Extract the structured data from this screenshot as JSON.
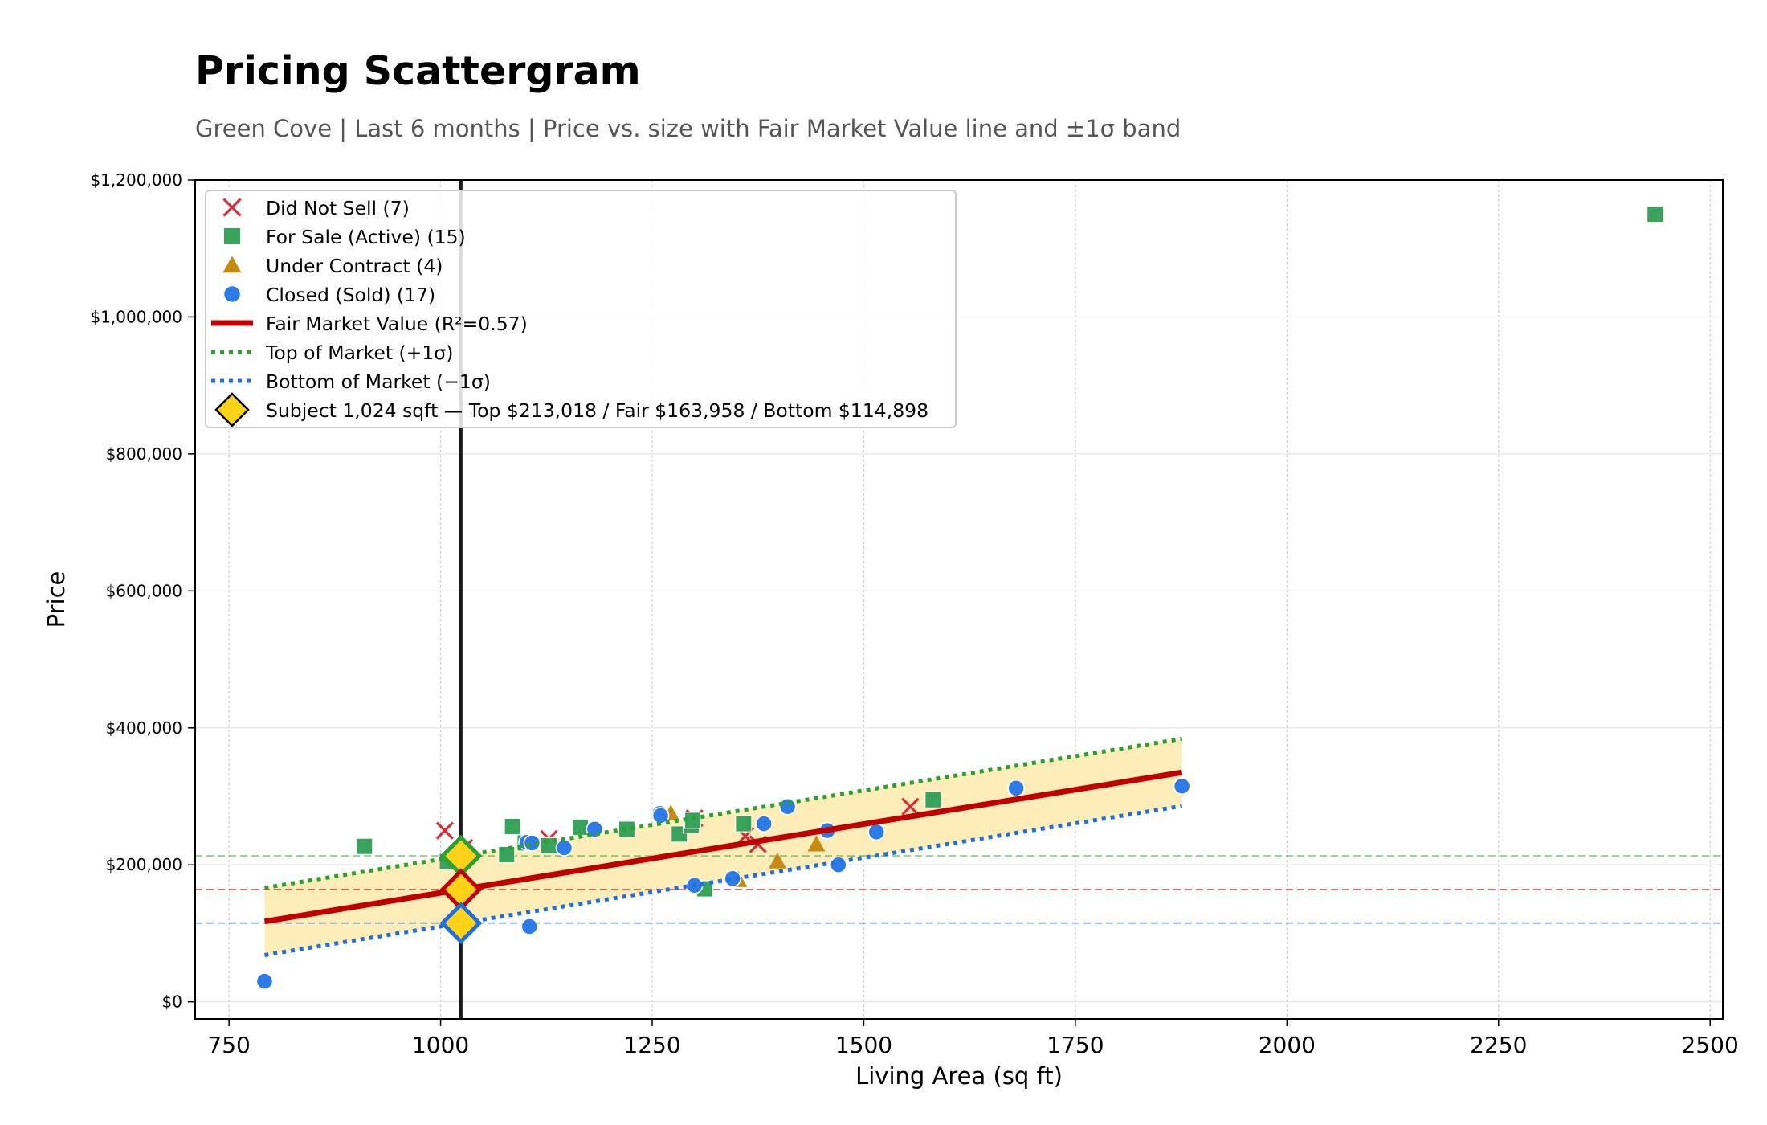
{
  "page": {
    "title": "Pricing Scattergram",
    "subtitle": "Green Cove  |  Last 6 months  |  Price vs. size with Fair Market Value line and ±1σ band"
  },
  "chart_data": {
    "type": "scatter",
    "title": "Pricing Scattergram",
    "subtitle": "Green Cove  |  Last 6 months  |  Price vs. size with Fair Market Value line and ±1σ band",
    "xlabel": "Living Area (sq ft)",
    "ylabel": "Price",
    "xlim": [
      710,
      2515
    ],
    "ylim": [
      -25000,
      1200000
    ],
    "x_ticks": [
      750,
      1000,
      1250,
      1500,
      1750,
      2000,
      2250,
      2500
    ],
    "y_ticks": [
      0,
      200000,
      400000,
      600000,
      800000,
      1000000,
      1200000
    ],
    "y_tick_labels": [
      "$0",
      "$200,000",
      "$400,000",
      "$600,000",
      "$800,000",
      "$1,000,000",
      "$1,200,000"
    ],
    "grid": true,
    "legend_position": "top-left",
    "series": [
      {
        "name": "Did Not Sell (7)",
        "marker": "x",
        "color": "#d62f3a",
        "points": [
          [
            1005,
            250000
          ],
          [
            1028,
            225000
          ],
          [
            1128,
            238000
          ],
          [
            1300,
            268000
          ],
          [
            1375,
            230000
          ],
          [
            1555,
            285000
          ],
          [
            1360,
            242000
          ]
        ]
      },
      {
        "name": "For Sale (Active) (15)",
        "marker": "square",
        "color": "#3aa35b",
        "points": [
          [
            910,
            227000
          ],
          [
            1008,
            205000
          ],
          [
            1078,
            215000
          ],
          [
            1085,
            256000
          ],
          [
            1128,
            228000
          ],
          [
            1165,
            255000
          ],
          [
            1282,
            245000
          ],
          [
            1296,
            258000
          ],
          [
            1298,
            265000
          ],
          [
            1312,
            165000
          ],
          [
            1358,
            260000
          ],
          [
            1582,
            295000
          ],
          [
            2435,
            1150000
          ],
          [
            1220,
            252000
          ],
          [
            1100,
            232000
          ]
        ]
      },
      {
        "name": "Under Contract (4)",
        "marker": "triangle",
        "color": "#c48a12",
        "points": [
          [
            1272,
            275000
          ],
          [
            1352,
            178000
          ],
          [
            1398,
            205000
          ],
          [
            1444,
            230000
          ]
        ]
      },
      {
        "name": "Closed (Sold) (17)",
        "marker": "circle",
        "color": "#2f7be6",
        "points": [
          [
            792,
            30000
          ],
          [
            1102,
            233000
          ],
          [
            1105,
            110000
          ],
          [
            1146,
            225000
          ],
          [
            1182,
            252000
          ],
          [
            1259,
            275000
          ],
          [
            1300,
            170000
          ],
          [
            1345,
            180000
          ],
          [
            1382,
            260000
          ],
          [
            1410,
            285000
          ],
          [
            1457,
            250000
          ],
          [
            1470,
            200000
          ],
          [
            1515,
            248000
          ],
          [
            1680,
            312000
          ],
          [
            1876,
            315000
          ],
          [
            1108,
            232000
          ],
          [
            1260,
            272000
          ]
        ]
      }
    ],
    "fair_market_value": {
      "label": "Fair Market Value (R²=0.57)",
      "color": "#c00000",
      "x_range": [
        792,
        1876
      ],
      "slope": 200.8,
      "intercept": -41661,
      "sigma": 49060
    },
    "top_of_market_label": "Top of Market (+1σ)",
    "top_of_market_color": "#2ca02c",
    "bottom_of_market_label": "Bottom of Market (−1σ)",
    "bottom_of_market_color": "#1f6fe0",
    "band_color": "#fdedb5",
    "subject": {
      "label": "Subject 1,024 sqft  —  Top $213,018 / Fair $163,958 / Bottom $114,898",
      "sqft": 1024,
      "top": 213018,
      "fair": 163958,
      "bottom": 114898,
      "fill_color": "#ffd21a"
    }
  }
}
